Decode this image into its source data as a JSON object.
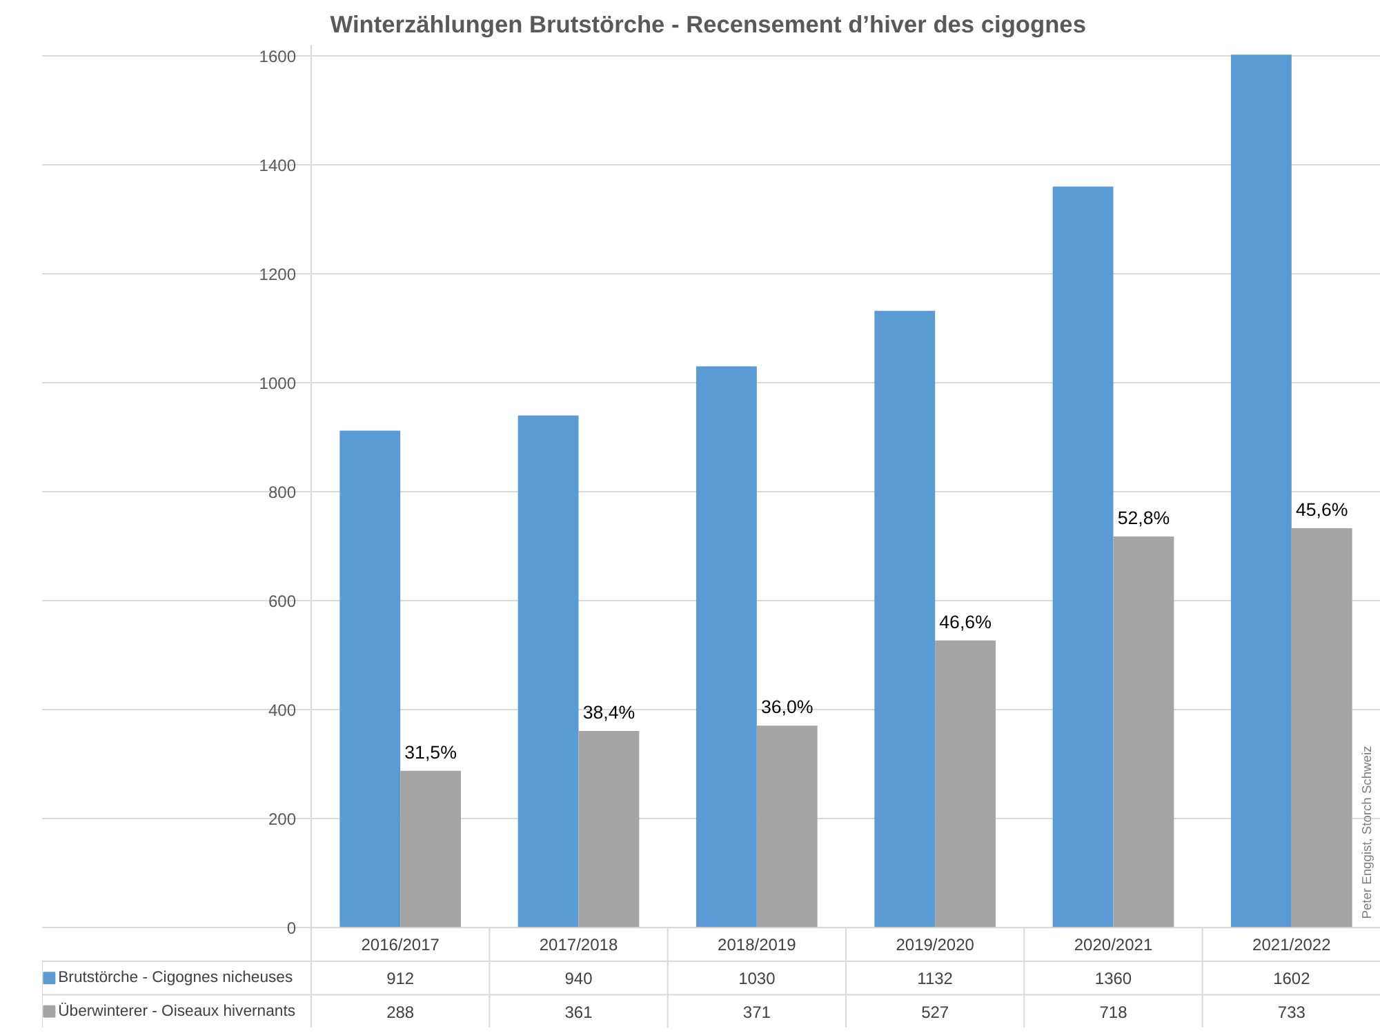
{
  "chart_data": {
    "type": "bar",
    "title": "Winterzählungen Brutstörche  - Recensement d’hiver des cigognes",
    "categories": [
      "2016/2017",
      "2017/2018",
      "2018/2019",
      "2019/2020",
      "2020/2021",
      "2021/2022"
    ],
    "series": [
      {
        "name": "Brutstörche - Cigognes nicheuses",
        "color": "#5b9bd5",
        "values": [
          912,
          940,
          1030,
          1132,
          1360,
          1602
        ]
      },
      {
        "name": "Überwinterer - Oiseaux hivernants",
        "color": "#a5a5a5",
        "values": [
          288,
          361,
          371,
          527,
          718,
          733
        ]
      }
    ],
    "ylim": [
      0,
      1620
    ],
    "yticks": [
      0,
      200,
      400,
      600,
      800,
      1000,
      1200,
      1400,
      1600
    ],
    "grid": "y",
    "legend": "bottom",
    "data_labels": true,
    "annotations": [
      {
        "text": "31,5%",
        "x": "2016/2017",
        "y": 288
      },
      {
        "text": "38,4%",
        "x": "2017/2018",
        "y": 361
      },
      {
        "text": "36,0%",
        "x": "2018/2019",
        "y": 371
      },
      {
        "text": "46,6%",
        "x": "2019/2020",
        "y": 527
      },
      {
        "text": "52,8%",
        "x": "2020/2021",
        "y": 718
      },
      {
        "text": "45,6%",
        "x": "2021/2022",
        "y": 733
      },
      "Peter Enggist, Storch Schweiz"
    ]
  }
}
